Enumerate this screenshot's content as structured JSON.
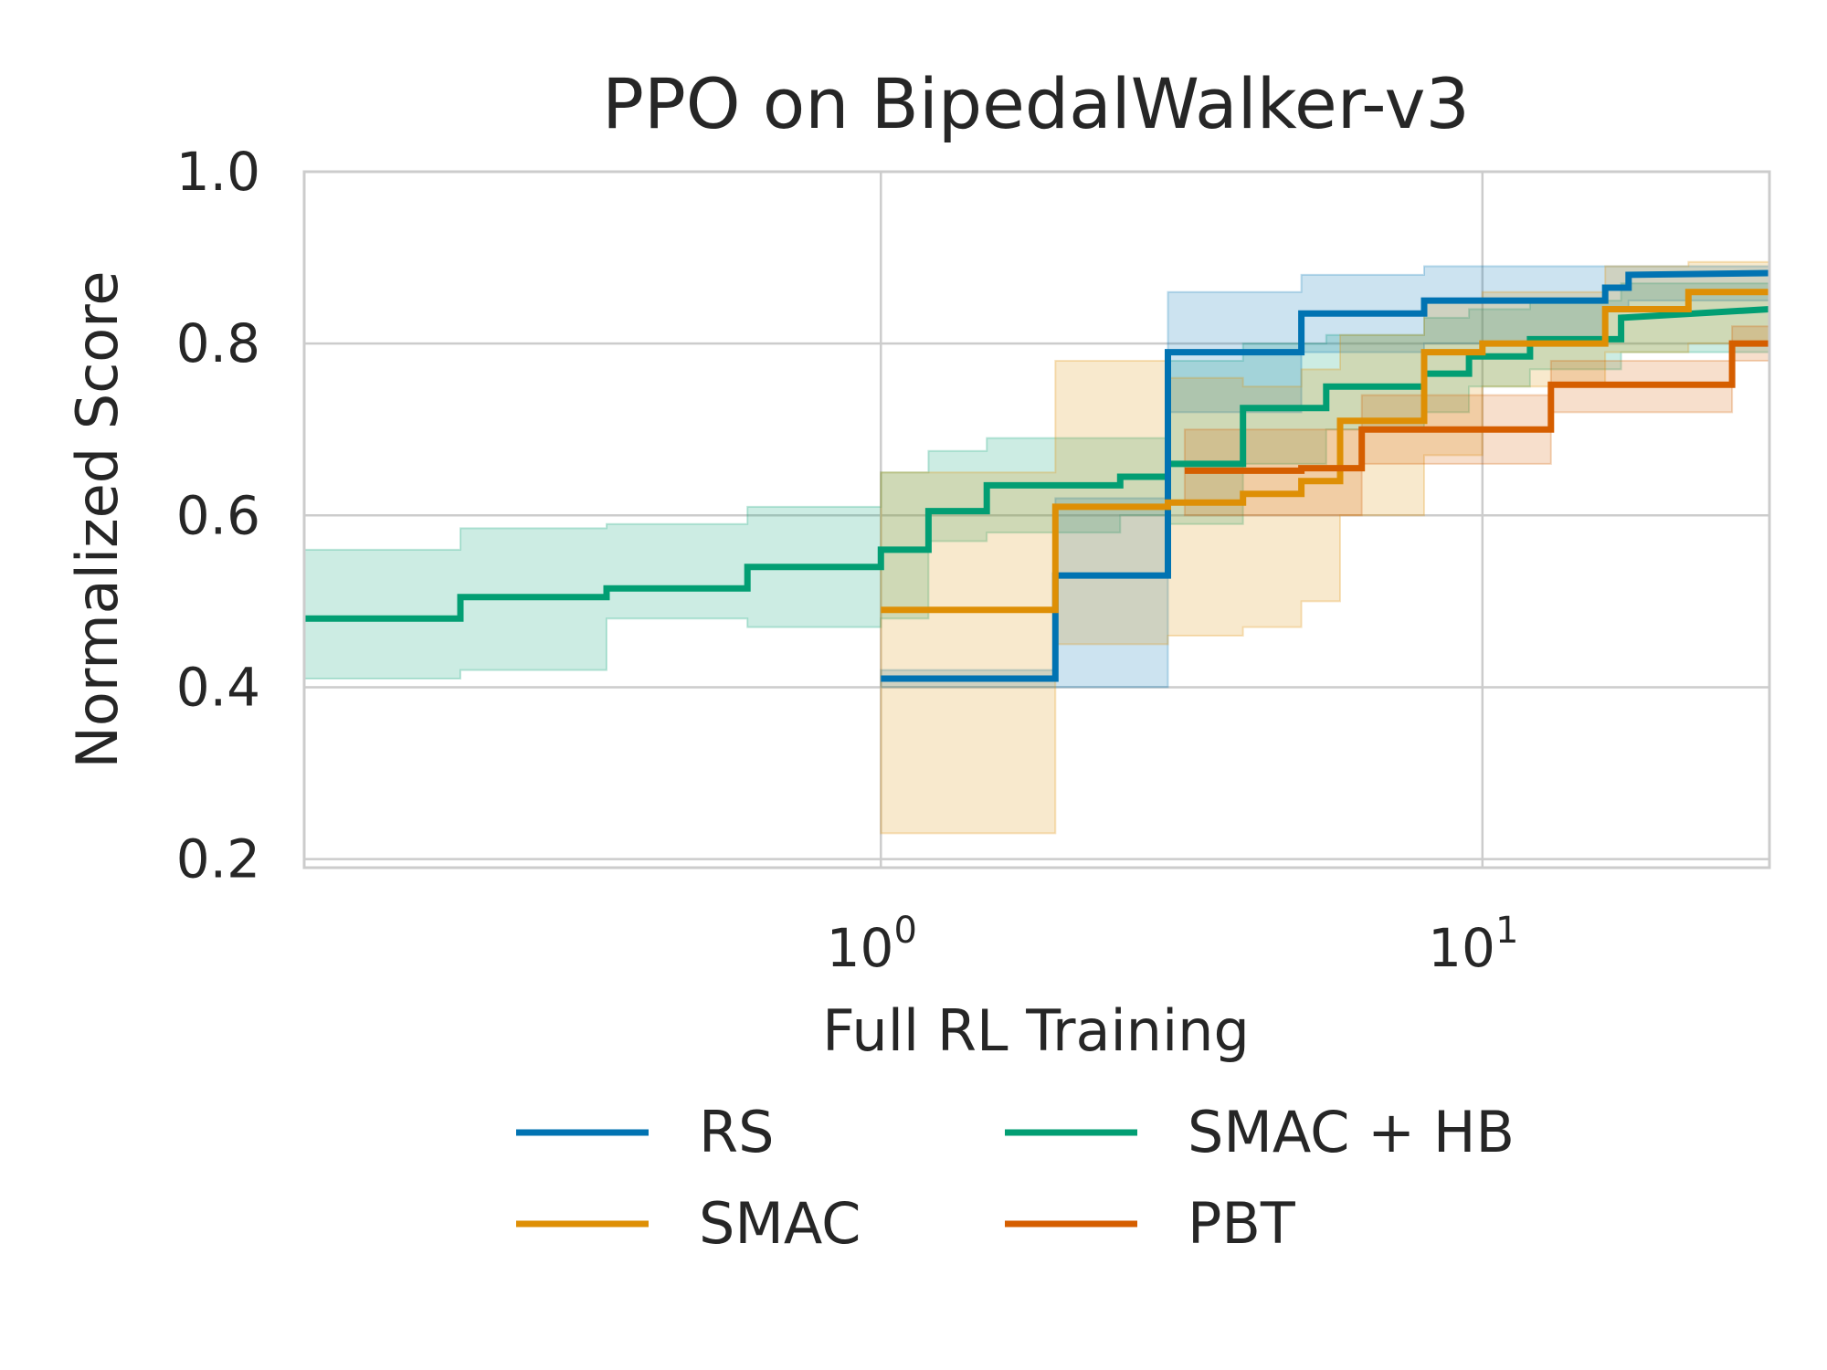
{
  "chart_data": {
    "type": "line",
    "title": "PPO on BipedalWalker-v3",
    "xlabel": "Full RL Training",
    "ylabel": "Normalized Score",
    "xscale": "log",
    "xlim": [
      0.11,
      30
    ],
    "ylim": [
      0.19,
      1.0
    ],
    "yticks": [
      "0.2",
      "0.4",
      "0.6",
      "0.8",
      "1.0"
    ],
    "xticks": [
      {
        "value": 1,
        "base": "10",
        "exp": "0"
      },
      {
        "value": 10,
        "base": "10",
        "exp": "1"
      }
    ],
    "grid": true,
    "legend_position": "below",
    "series": [
      {
        "name": "RS",
        "color": "#0173b2",
        "x": [
          1.0,
          1.95,
          1.95,
          3.0,
          3.0,
          5.0,
          5.0,
          8.0,
          8.0,
          16.0,
          16.0,
          17.5,
          17.5,
          30.0
        ],
        "y": [
          0.41,
          0.41,
          0.53,
          0.53,
          0.79,
          0.79,
          0.835,
          0.835,
          0.85,
          0.85,
          0.865,
          0.865,
          0.88,
          0.882
        ],
        "upper": [
          0.42,
          0.42,
          0.62,
          0.62,
          0.86,
          0.86,
          0.88,
          0.88,
          0.89,
          0.89,
          0.89,
          0.89,
          0.89,
          0.89
        ],
        "lower": [
          0.4,
          0.4,
          0.4,
          0.4,
          0.72,
          0.72,
          0.79,
          0.79,
          0.8,
          0.8,
          0.84,
          0.84,
          0.85,
          0.85
        ]
      },
      {
        "name": "SMAC",
        "color": "#de8f05",
        "x": [
          1.0,
          1.95,
          1.95,
          3.0,
          3.0,
          4.0,
          4.0,
          5.0,
          5.0,
          5.8,
          5.8,
          8.0,
          8.0,
          10.0,
          10.0,
          16.0,
          16.0,
          22.0,
          22.0,
          30.0
        ],
        "y": [
          0.49,
          0.49,
          0.61,
          0.61,
          0.615,
          0.615,
          0.625,
          0.625,
          0.64,
          0.64,
          0.71,
          0.71,
          0.79,
          0.79,
          0.8,
          0.8,
          0.84,
          0.84,
          0.86,
          0.86
        ],
        "upper": [
          0.65,
          0.65,
          0.78,
          0.78,
          0.76,
          0.76,
          0.75,
          0.75,
          0.77,
          0.77,
          0.81,
          0.81,
          0.85,
          0.85,
          0.86,
          0.86,
          0.89,
          0.89,
          0.895,
          0.895
        ],
        "lower": [
          0.23,
          0.23,
          0.45,
          0.45,
          0.46,
          0.46,
          0.47,
          0.47,
          0.5,
          0.5,
          0.6,
          0.6,
          0.67,
          0.67,
          0.75,
          0.75,
          0.79,
          0.79,
          0.8,
          0.8
        ]
      },
      {
        "name": "SMAC + HB",
        "color": "#029e73",
        "x": [
          0.11,
          0.2,
          0.2,
          0.35,
          0.35,
          0.6,
          0.6,
          1.0,
          1.0,
          1.2,
          1.2,
          1.5,
          1.5,
          2.5,
          2.5,
          3.0,
          3.0,
          4.0,
          4.0,
          5.5,
          5.5,
          8.0,
          8.0,
          9.5,
          9.5,
          12.0,
          12.0,
          17.0,
          17.0,
          30.0
        ],
        "y": [
          0.48,
          0.48,
          0.505,
          0.505,
          0.515,
          0.515,
          0.54,
          0.54,
          0.56,
          0.56,
          0.605,
          0.605,
          0.635,
          0.635,
          0.645,
          0.645,
          0.66,
          0.66,
          0.725,
          0.725,
          0.75,
          0.75,
          0.765,
          0.765,
          0.785,
          0.785,
          0.805,
          0.805,
          0.83,
          0.84
        ],
        "upper": [
          0.56,
          0.56,
          0.585,
          0.585,
          0.59,
          0.59,
          0.61,
          0.61,
          0.65,
          0.65,
          0.675,
          0.675,
          0.69,
          0.69,
          0.69,
          0.69,
          0.78,
          0.78,
          0.8,
          0.8,
          0.81,
          0.81,
          0.83,
          0.83,
          0.84,
          0.84,
          0.85,
          0.85,
          0.87,
          0.87
        ],
        "lower": [
          0.41,
          0.41,
          0.42,
          0.42,
          0.48,
          0.48,
          0.47,
          0.47,
          0.48,
          0.48,
          0.57,
          0.57,
          0.58,
          0.58,
          0.6,
          0.6,
          0.59,
          0.59,
          0.66,
          0.66,
          0.7,
          0.7,
          0.72,
          0.72,
          0.75,
          0.75,
          0.77,
          0.77,
          0.79,
          0.79
        ]
      },
      {
        "name": "PBT",
        "color": "#d55e00",
        "x": [
          3.2,
          5.0,
          5.0,
          6.3,
          6.3,
          13.0,
          13.0,
          26.0,
          26.0,
          30.0
        ],
        "y": [
          0.652,
          0.652,
          0.655,
          0.655,
          0.7,
          0.7,
          0.752,
          0.752,
          0.8,
          0.8
        ],
        "upper": [
          0.7,
          0.7,
          0.7,
          0.7,
          0.74,
          0.74,
          0.78,
          0.78,
          0.82,
          0.82
        ],
        "lower": [
          0.6,
          0.6,
          0.6,
          0.6,
          0.66,
          0.66,
          0.72,
          0.72,
          0.78,
          0.78
        ]
      }
    ]
  }
}
